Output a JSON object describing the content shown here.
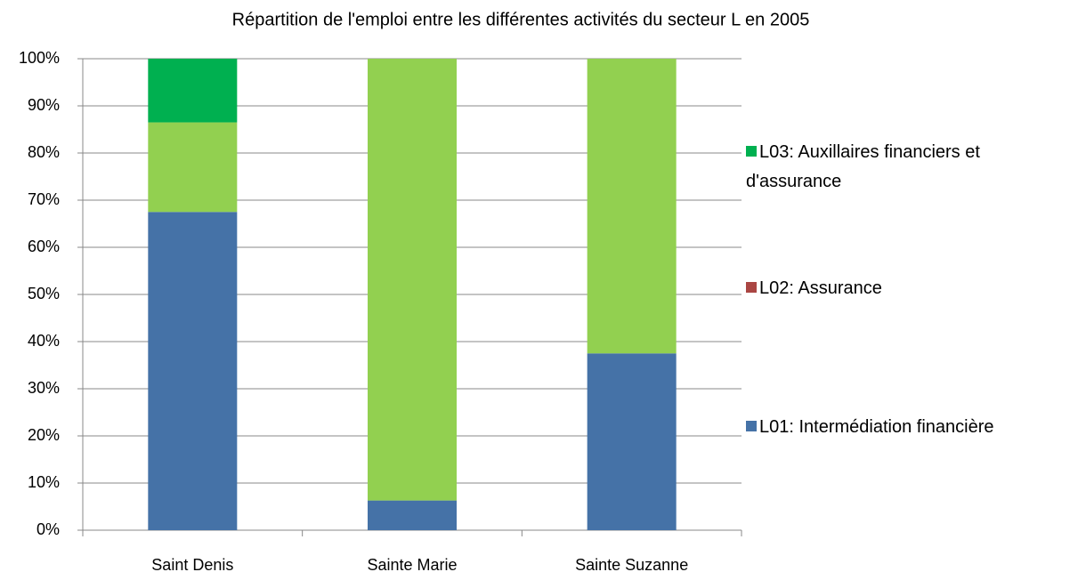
{
  "chart_data": {
    "type": "stacked_bar",
    "title": "Répartition de l'emploi entre les différentes activités du secteur L en 2005",
    "categories": [
      "Saint Denis",
      "Sainte Marie",
      "Sainte Suzanne"
    ],
    "series": [
      {
        "name": "L01: Intermédiation financière",
        "color": "#4572a7",
        "values": [
          67.5,
          6.3,
          37.5
        ]
      },
      {
        "name": "L02: Assurance",
        "color": "#aa4643",
        "values": [
          0,
          0,
          0
        ]
      },
      {
        "name": null,
        "color": "#92d050",
        "values": [
          19,
          93.7,
          62.5
        ]
      },
      {
        "name": "L03: Auxillaires financiers et d'assurance",
        "color": "#00b050",
        "values": [
          13.5,
          0,
          0
        ]
      }
    ],
    "ylim": [
      0,
      100
    ],
    "yticks": [
      {
        "value": 0,
        "label": "0%"
      },
      {
        "value": 10,
        "label": "10%"
      },
      {
        "value": 20,
        "label": "20%"
      },
      {
        "value": 30,
        "label": "30%"
      },
      {
        "value": 40,
        "label": "40%"
      },
      {
        "value": 50,
        "label": "50%"
      },
      {
        "value": 60,
        "label": "60%"
      },
      {
        "value": 70,
        "label": "70%"
      },
      {
        "value": 80,
        "label": "80%"
      },
      {
        "value": 90,
        "label": "90%"
      },
      {
        "value": 100,
        "label": "100%"
      }
    ],
    "grid": true,
    "legend": "right"
  }
}
